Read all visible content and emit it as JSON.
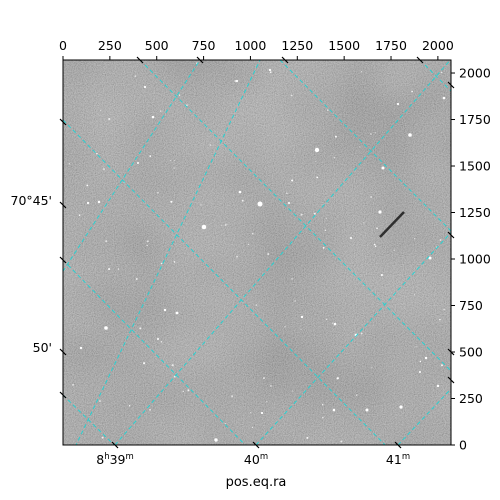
{
  "chart_data": {
    "type": "image",
    "xlabel": "pos.eq.ra",
    "ylabel": "",
    "pixel_axes": {
      "x_ticks": [
        0,
        250,
        500,
        750,
        1000,
        1250,
        1500,
        1750,
        2000
      ],
      "y_ticks": [
        0,
        250,
        500,
        750,
        1000,
        1250,
        1500,
        1750,
        2000
      ],
      "xlim": [
        0,
        2070
      ],
      "ylim": [
        0,
        2070
      ]
    },
    "ra_ticks": [
      {
        "main": "8",
        "main_unit": "h",
        "minor": "39",
        "minor_unit": "m"
      },
      {
        "main": "",
        "main_unit": "",
        "minor": "40",
        "minor_unit": "m"
      },
      {
        "main": "",
        "main_unit": "",
        "minor": "41",
        "minor_unit": "m"
      }
    ],
    "dec_ticks": [
      "70°45'",
      "50'"
    ],
    "grid": true,
    "grid_color": "#22d3d3"
  }
}
